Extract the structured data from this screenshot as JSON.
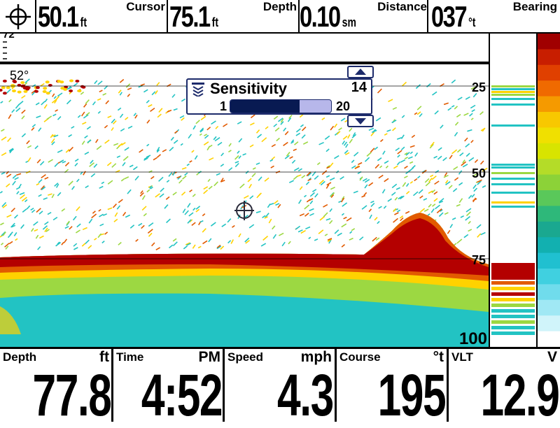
{
  "topbar": {
    "cursor": {
      "value": "50.1",
      "unit": "ft",
      "label": "Cursor"
    },
    "depth": {
      "value": "75.1",
      "unit": "ft",
      "label": "Depth"
    },
    "distance": {
      "value": "0.10",
      "unit": "sm",
      "label": "Distance"
    },
    "bearing": {
      "value": "037",
      "unit": "°t",
      "label": "Bearing"
    }
  },
  "sonar": {
    "temperature": "52°",
    "top_scale": "72",
    "depth_marks": [
      "25",
      "50",
      "75",
      "100"
    ],
    "colors": {
      "background": "#ffffff",
      "bottom_strong": "#b40000",
      "bottom_mid": "#ffd200",
      "clutter": "#22c3c3"
    }
  },
  "sensitivity": {
    "title": "Sensitivity",
    "value": 14,
    "min": "1",
    "max": "20",
    "value_label": "14"
  },
  "bottombar": {
    "depth": {
      "label": "Depth",
      "unit": "ft",
      "value": "77.8"
    },
    "time": {
      "label": "Time",
      "unit": "PM",
      "value": "4:52"
    },
    "speed": {
      "label": "Speed",
      "unit": "mph",
      "value": "4.3"
    },
    "course": {
      "label": "Course",
      "unit": "°t",
      "value": "195"
    },
    "vlt": {
      "label": "VLT",
      "unit": "V",
      "value": "12.9"
    }
  }
}
